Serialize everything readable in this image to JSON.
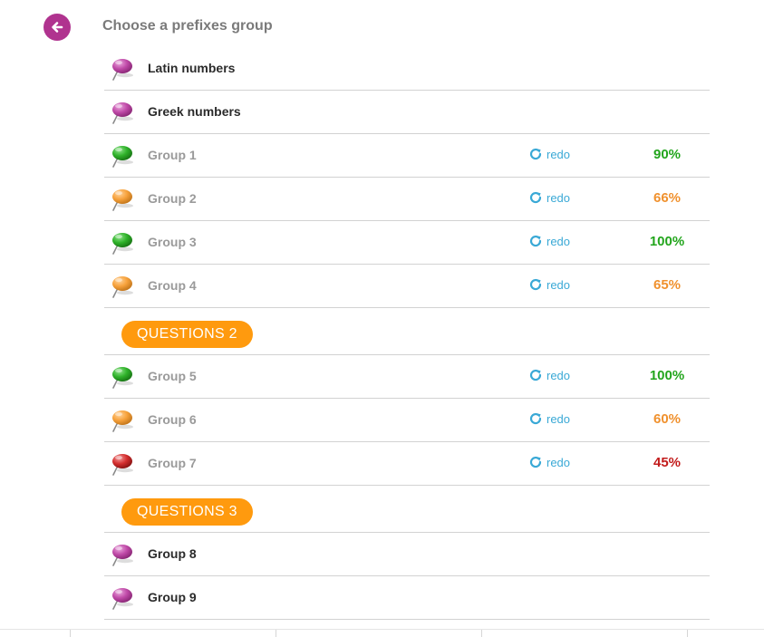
{
  "header": {
    "back_icon": "arrow-left-icon",
    "title": "Choose a prefixes group"
  },
  "colors": {
    "purple_pin": "#c04aa8",
    "green_pin": "#2fb22a",
    "orange_pin": "#f7a23c",
    "red_pin": "#d42e2e",
    "green_score": "#22a51c",
    "orange_score": "#f0912e",
    "red_score": "#c21b1b",
    "badge": "#ff9a0e",
    "redo": "#3aa9d6"
  },
  "rows": [
    {
      "kind": "item",
      "label": "Latin numbers",
      "pin": "purple",
      "done": false
    },
    {
      "kind": "item",
      "label": "Greek numbers",
      "pin": "purple",
      "done": false
    },
    {
      "kind": "item",
      "label": "Group 1",
      "pin": "green",
      "done": true,
      "redo_label": "redo",
      "redo_icon": "redo-icon",
      "score": "90%",
      "score_color": "green"
    },
    {
      "kind": "item",
      "label": "Group 2",
      "pin": "orange",
      "done": true,
      "redo_label": "redo",
      "redo_icon": "redo-icon",
      "score": "66%",
      "score_color": "orange"
    },
    {
      "kind": "item",
      "label": "Group 3",
      "pin": "green",
      "done": true,
      "redo_label": "redo",
      "redo_icon": "redo-icon",
      "score": "100%",
      "score_color": "green"
    },
    {
      "kind": "item",
      "label": "Group 4",
      "pin": "orange",
      "done": true,
      "redo_label": "redo",
      "redo_icon": "redo-icon",
      "score": "65%",
      "score_color": "orange"
    },
    {
      "kind": "section",
      "label": "QUESTIONS 2"
    },
    {
      "kind": "item",
      "label": "Group 5",
      "pin": "green",
      "done": true,
      "redo_label": "redo",
      "redo_icon": "redo-icon",
      "score": "100%",
      "score_color": "green"
    },
    {
      "kind": "item",
      "label": "Group 6",
      "pin": "orange",
      "done": true,
      "redo_label": "redo",
      "redo_icon": "redo-icon",
      "score": "60%",
      "score_color": "orange"
    },
    {
      "kind": "item",
      "label": "Group 7",
      "pin": "red",
      "done": true,
      "redo_label": "redo",
      "redo_icon": "redo-icon",
      "score": "45%",
      "score_color": "red"
    },
    {
      "kind": "section",
      "label": "QUESTIONS 3"
    },
    {
      "kind": "item",
      "label": "Group 8",
      "pin": "purple",
      "done": false
    },
    {
      "kind": "item",
      "label": "Group 9",
      "pin": "purple",
      "done": false
    }
  ]
}
